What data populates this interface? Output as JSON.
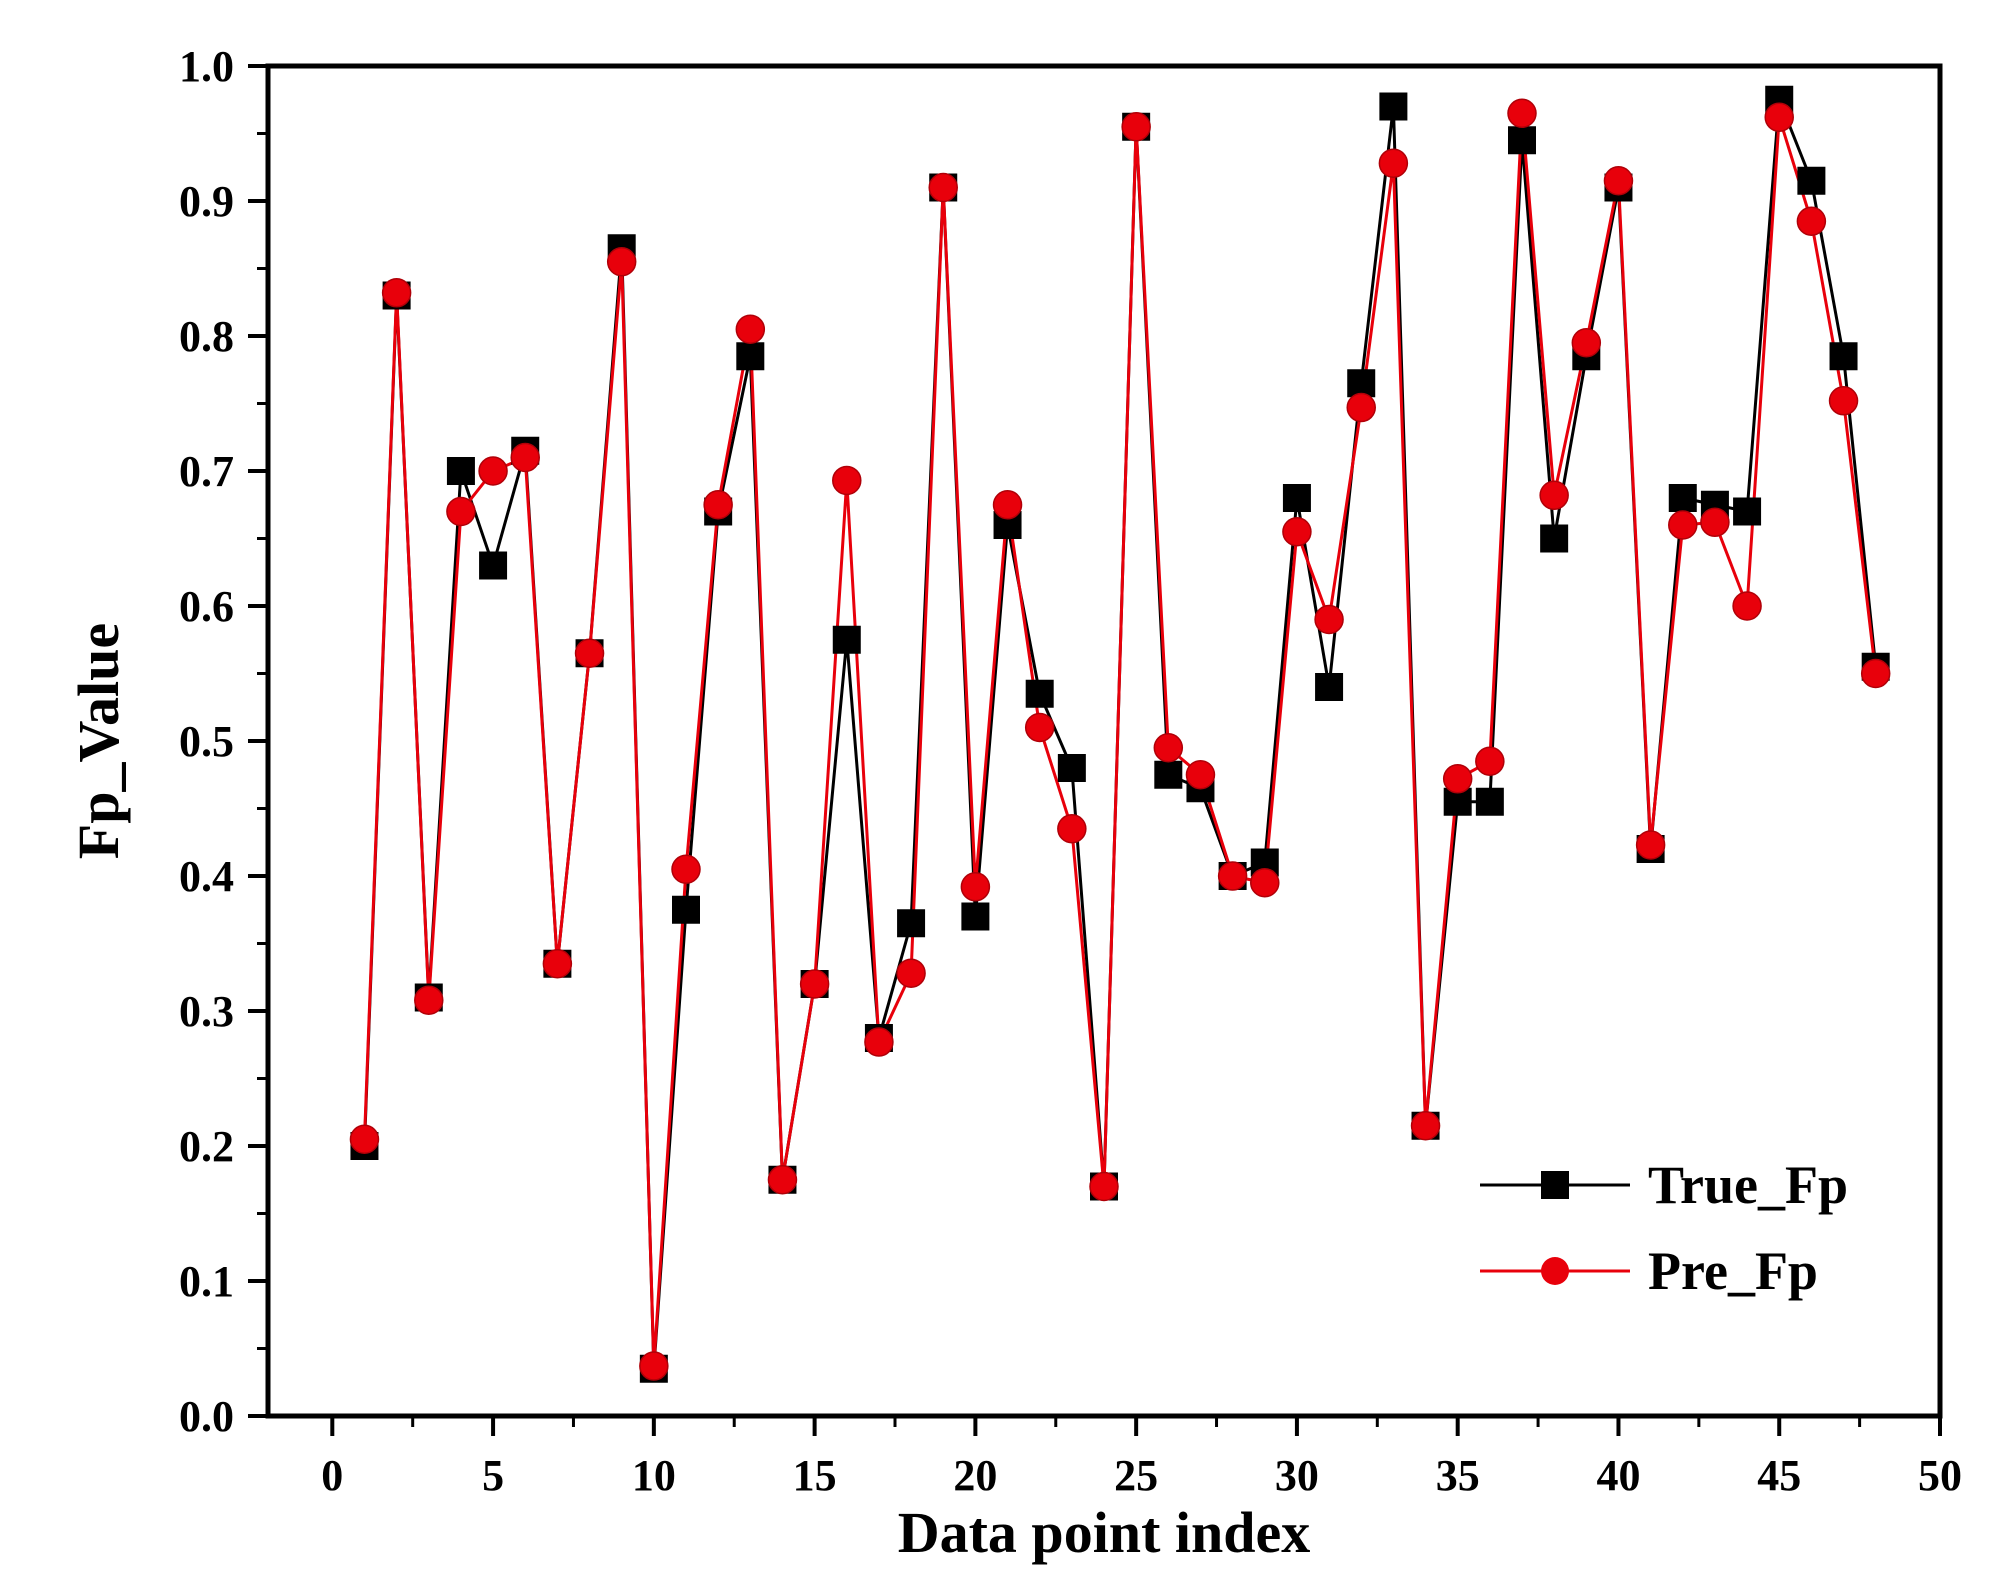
{
  "chart_data": {
    "type": "line",
    "title": "",
    "xlabel": "Data point index",
    "ylabel": "Fp_Value",
    "xlim": [
      -2,
      50
    ],
    "ylim": [
      0.0,
      1.0
    ],
    "xticks": [
      0,
      5,
      10,
      15,
      20,
      25,
      30,
      35,
      40,
      45,
      50
    ],
    "xtick_labels": [
      "0",
      "5",
      "10",
      "15",
      "20",
      "25",
      "30",
      "35",
      "40",
      "45",
      "50"
    ],
    "yticks": [
      0.0,
      0.1,
      0.2,
      0.3,
      0.4,
      0.5,
      0.6,
      0.7,
      0.8,
      0.9,
      1.0
    ],
    "ytick_labels": [
      "0.0",
      "0.1",
      "0.2",
      "0.3",
      "0.4",
      "0.5",
      "0.6",
      "0.7",
      "0.8",
      "0.9",
      "1.0"
    ],
    "grid": false,
    "legend_position": "bottom-right",
    "x": [
      1,
      2,
      3,
      4,
      5,
      6,
      7,
      8,
      9,
      10,
      11,
      12,
      13,
      14,
      15,
      16,
      17,
      18,
      19,
      20,
      21,
      22,
      23,
      24,
      25,
      26,
      27,
      28,
      29,
      30,
      31,
      32,
      33,
      34,
      35,
      36,
      37,
      38,
      39,
      40,
      41,
      42,
      43,
      44,
      45,
      46,
      47,
      48
    ],
    "series": [
      {
        "name": "True_Fp",
        "color": "#000000",
        "marker": "square",
        "values": [
          0.2,
          0.83,
          0.31,
          0.7,
          0.63,
          0.715,
          0.335,
          0.565,
          0.865,
          0.035,
          0.375,
          0.67,
          0.785,
          0.175,
          0.32,
          0.575,
          0.28,
          0.365,
          0.91,
          0.37,
          0.66,
          0.535,
          0.48,
          0.17,
          0.955,
          0.475,
          0.465,
          0.4,
          0.41,
          0.68,
          0.54,
          0.765,
          0.97,
          0.215,
          0.455,
          0.455,
          0.945,
          0.65,
          0.785,
          0.91,
          0.42,
          0.68,
          0.675,
          0.67,
          0.975,
          0.915,
          0.785,
          0.555
        ]
      },
      {
        "name": "Pre_Fp",
        "color": "#e8000b",
        "marker": "circle",
        "values": [
          0.205,
          0.832,
          0.308,
          0.67,
          0.7,
          0.71,
          0.335,
          0.565,
          0.855,
          0.037,
          0.405,
          0.675,
          0.805,
          0.175,
          0.32,
          0.693,
          0.277,
          0.328,
          0.91,
          0.392,
          0.675,
          0.51,
          0.435,
          0.17,
          0.955,
          0.495,
          0.475,
          0.4,
          0.395,
          0.655,
          0.59,
          0.747,
          0.928,
          0.215,
          0.472,
          0.485,
          0.965,
          0.682,
          0.795,
          0.915,
          0.423,
          0.66,
          0.662,
          0.6,
          0.962,
          0.885,
          0.752,
          0.55
        ]
      }
    ]
  }
}
